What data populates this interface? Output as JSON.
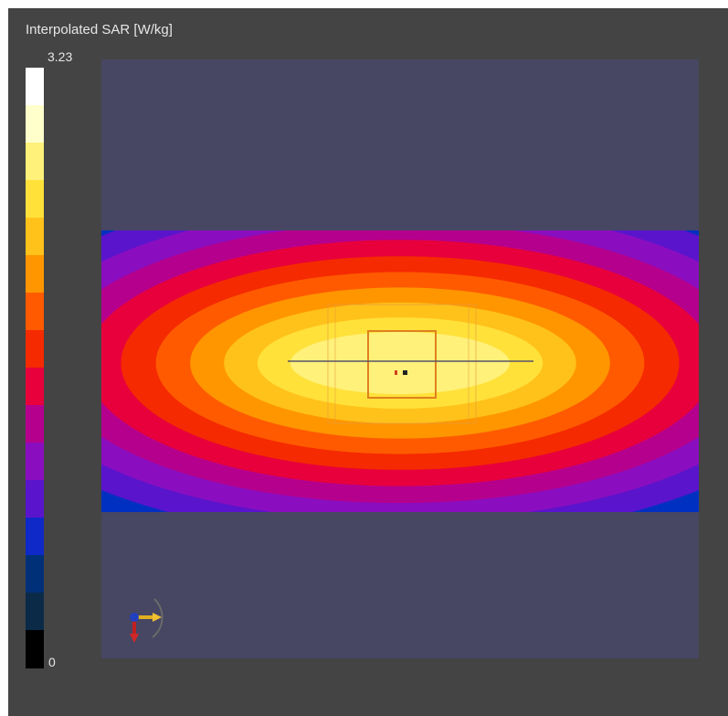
{
  "title": "Interpolated SAR [W/kg]",
  "colorbar": {
    "max_label": "3.23",
    "min_label": "0",
    "colors": [
      "#ffffff",
      "#ffffcc",
      "#fff17a",
      "#ffe13a",
      "#ffc21a",
      "#ff9600",
      "#ff5a00",
      "#f52a00",
      "#e8003c",
      "#b5008e",
      "#8a0ec0",
      "#5a14cc",
      "#0f28c8",
      "#003078",
      "#0a2a48",
      "#000000"
    ]
  },
  "background_color": "#474763",
  "contours": {
    "outer_to_inner": [
      "#0030c0",
      "#5a14cc",
      "#8a0ec0",
      "#b5008e",
      "#e8003c",
      "#f52a00",
      "#ff5a00",
      "#ff9600",
      "#ffc21a",
      "#ffe13a",
      "#fff17a"
    ]
  },
  "orientation_icon": "axes-triad-icon"
}
